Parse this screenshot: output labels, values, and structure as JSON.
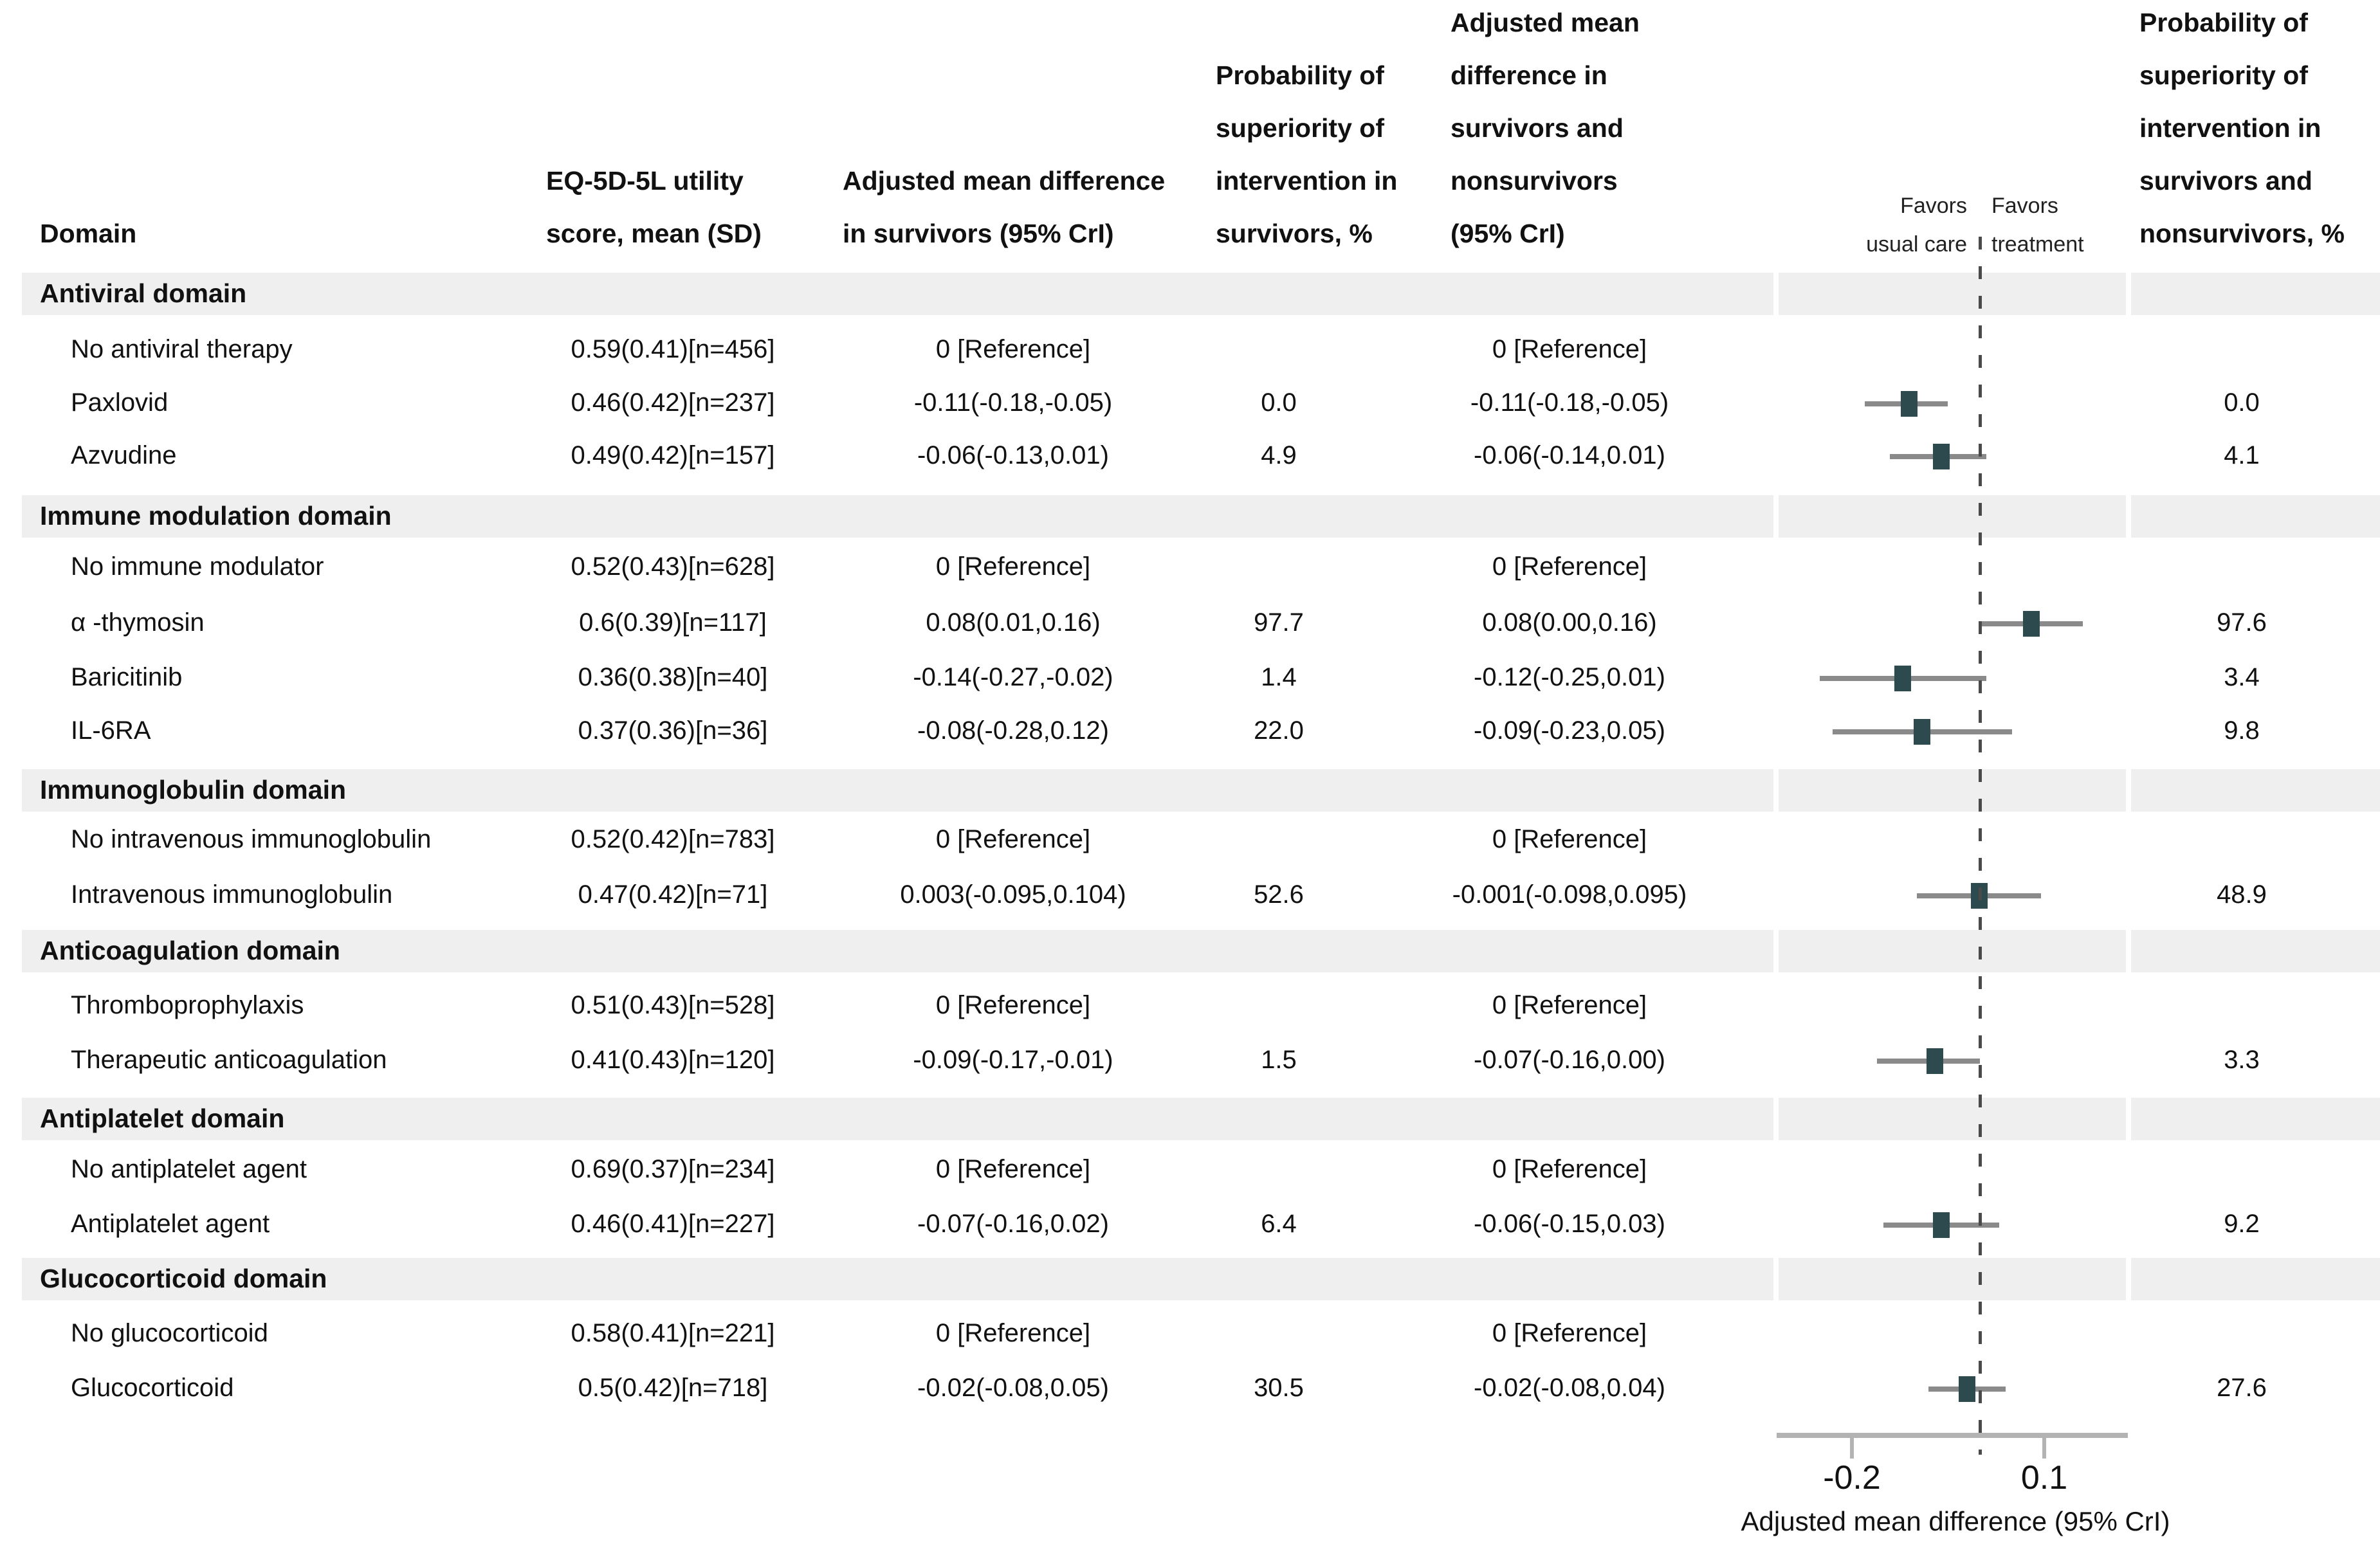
{
  "header": {
    "col_domain": "Domain",
    "col_eq5d": [
      "EQ-5D-5L utility",
      "score, mean (SD)"
    ],
    "col_amd_survivors": [
      "Adjusted mean difference",
      "in survivors (95% CrI)"
    ],
    "col_prob_survivors": [
      "Probability of",
      "superiority of",
      "intervention in",
      "survivors, %"
    ],
    "col_amd_all": [
      "Adjusted mean",
      "difference in",
      "survivors and",
      "nonsurvivors",
      "(95% CrI)"
    ],
    "col_prob_all": [
      "Probability of",
      "superiority of",
      "intervention in",
      "survivors and",
      "nonsurvivors, %"
    ],
    "favors_left": [
      "Favors",
      "usual care"
    ],
    "favors_right": [
      "Favors",
      "treatment"
    ]
  },
  "axis": {
    "tick_labels": [
      "-0.2",
      "0.1"
    ],
    "tick_values": [
      -0.2,
      0.1
    ],
    "label": "Adjusted mean difference (95% CrI)"
  },
  "colors": {
    "marker": "#2d4a4f",
    "ci_line": "#8a8a8a",
    "band": "#efefef",
    "axis": "#b3b3b3",
    "dashed_line": "#4a4a4a",
    "text": "#111111"
  },
  "domains": [
    {
      "name": "Antiviral domain",
      "rows": [
        {
          "label": "No antiviral therapy",
          "eq": "0.59(0.41)[n=456]",
          "amd_surv": "0 [Reference]",
          "prob_surv": "",
          "amd_all": "0 [Reference]",
          "prob_all": "",
          "plot": null
        },
        {
          "label": "Paxlovid",
          "eq": "0.46(0.42)[n=237]",
          "amd_surv": "-0.11(-0.18,-0.05)",
          "prob_surv": "0.0",
          "amd_all": "-0.11(-0.18,-0.05)",
          "prob_all": "0.0",
          "plot": {
            "est": -0.11,
            "lo": -0.18,
            "hi": -0.05
          }
        },
        {
          "label": "Azvudine",
          "eq": "0.49(0.42)[n=157]",
          "amd_surv": "-0.06(-0.13,0.01)",
          "prob_surv": "4.9",
          "amd_all": "-0.06(-0.14,0.01)",
          "prob_all": "4.1",
          "plot": {
            "est": -0.06,
            "lo": -0.14,
            "hi": 0.01
          }
        }
      ]
    },
    {
      "name": "Immune modulation domain",
      "rows": [
        {
          "label": "No immune modulator",
          "eq": "0.52(0.43)[n=628]",
          "amd_surv": "0 [Reference]",
          "prob_surv": "",
          "amd_all": "0 [Reference]",
          "prob_all": "",
          "plot": null
        },
        {
          "label": "α -thymosin",
          "eq": "0.6(0.39)[n=117]",
          "amd_surv": "0.08(0.01,0.16)",
          "prob_surv": "97.7",
          "amd_all": "0.08(0.00,0.16)",
          "prob_all": "97.6",
          "plot": {
            "est": 0.08,
            "lo": 0.0,
            "hi": 0.16
          }
        },
        {
          "label": "Baricitinib",
          "eq": "0.36(0.38)[n=40]",
          "amd_surv": "-0.14(-0.27,-0.02)",
          "prob_surv": "1.4",
          "amd_all": "-0.12(-0.25,0.01)",
          "prob_all": "3.4",
          "plot": {
            "est": -0.12,
            "lo": -0.25,
            "hi": 0.01
          }
        },
        {
          "label": "IL-6RA",
          "eq": "0.37(0.36)[n=36]",
          "amd_surv": "-0.08(-0.28,0.12)",
          "prob_surv": "22.0",
          "amd_all": "-0.09(-0.23,0.05)",
          "prob_all": "9.8",
          "plot": {
            "est": -0.09,
            "lo": -0.23,
            "hi": 0.05
          }
        }
      ]
    },
    {
      "name": "Immunoglobulin domain",
      "rows": [
        {
          "label": "No intravenous immunoglobulin",
          "eq": "0.52(0.42)[n=783]",
          "amd_surv": "0 [Reference]",
          "prob_surv": "",
          "amd_all": "0 [Reference]",
          "prob_all": "",
          "plot": null
        },
        {
          "label": "Intravenous immunoglobulin",
          "eq": "0.47(0.42)[n=71]",
          "amd_surv": "0.003(-0.095,0.104)",
          "prob_surv": "52.6",
          "amd_all": "-0.001(-0.098,0.095)",
          "prob_all": "48.9",
          "plot": {
            "est": -0.001,
            "lo": -0.098,
            "hi": 0.095
          }
        }
      ]
    },
    {
      "name": "Anticoagulation domain",
      "rows": [
        {
          "label": "Thromboprophylaxis",
          "eq": "0.51(0.43)[n=528]",
          "amd_surv": "0 [Reference]",
          "prob_surv": "",
          "amd_all": "0 [Reference]",
          "prob_all": "",
          "plot": null
        },
        {
          "label": "Therapeutic anticoagulation",
          "eq": "0.41(0.43)[n=120]",
          "amd_surv": "-0.09(-0.17,-0.01)",
          "prob_surv": "1.5",
          "amd_all": "-0.07(-0.16,0.00)",
          "prob_all": "3.3",
          "plot": {
            "est": -0.07,
            "lo": -0.16,
            "hi": 0.0
          }
        }
      ]
    },
    {
      "name": "Antiplatelet domain",
      "rows": [
        {
          "label": "No antiplatelet agent",
          "eq": "0.69(0.37)[n=234]",
          "amd_surv": "0 [Reference]",
          "prob_surv": "",
          "amd_all": "0 [Reference]",
          "prob_all": "",
          "plot": null
        },
        {
          "label": "Antiplatelet agent",
          "eq": "0.46(0.41)[n=227]",
          "amd_surv": "-0.07(-0.16,0.02)",
          "prob_surv": "6.4",
          "amd_all": "-0.06(-0.15,0.03)",
          "prob_all": "9.2",
          "plot": {
            "est": -0.06,
            "lo": -0.15,
            "hi": 0.03
          }
        }
      ]
    },
    {
      "name": "Glucocorticoid domain",
      "rows": [
        {
          "label": "No glucocorticoid",
          "eq": "0.58(0.41)[n=221]",
          "amd_surv": "0 [Reference]",
          "prob_surv": "",
          "amd_all": "0 [Reference]",
          "prob_all": "",
          "plot": null
        },
        {
          "label": "Glucocorticoid",
          "eq": "0.5(0.42)[n=718]",
          "amd_surv": "-0.02(-0.08,0.05)",
          "prob_surv": "30.5",
          "amd_all": "-0.02(-0.08,0.04)",
          "prob_all": "27.6",
          "plot": {
            "est": -0.02,
            "lo": -0.08,
            "hi": 0.04
          }
        }
      ]
    }
  ],
  "chart_data": {
    "type": "scatter",
    "subtype": "forest-plot",
    "title": "",
    "xlabel": "Adjusted mean difference (95% CrI)",
    "ylabel": "",
    "x_ticks": [
      -0.2,
      0.1
    ],
    "xlim": [
      -0.32,
      0.23
    ],
    "zero_line": 0,
    "grid": false,
    "legend_position": "none",
    "annotations": [
      "Favors usual care",
      "Favors treatment"
    ],
    "series": [
      {
        "name": "Adjusted mean difference in survivors and nonsurvivors (95% CrI)",
        "points": [
          {
            "label": "Paxlovid",
            "est": -0.11,
            "lo": -0.18,
            "hi": -0.05
          },
          {
            "label": "Azvudine",
            "est": -0.06,
            "lo": -0.14,
            "hi": 0.01
          },
          {
            "label": "α -thymosin",
            "est": 0.08,
            "lo": 0.0,
            "hi": 0.16
          },
          {
            "label": "Baricitinib",
            "est": -0.12,
            "lo": -0.25,
            "hi": 0.01
          },
          {
            "label": "IL-6RA",
            "est": -0.09,
            "lo": -0.23,
            "hi": 0.05
          },
          {
            "label": "Intravenous immunoglobulin",
            "est": -0.001,
            "lo": -0.098,
            "hi": 0.095
          },
          {
            "label": "Therapeutic anticoagulation",
            "est": -0.07,
            "lo": -0.16,
            "hi": 0.0
          },
          {
            "label": "Antiplatelet agent",
            "est": -0.06,
            "lo": -0.15,
            "hi": 0.03
          },
          {
            "label": "Glucocorticoid",
            "est": -0.02,
            "lo": -0.08,
            "hi": 0.04
          }
        ]
      },
      {
        "name": "Adjusted mean difference in survivors (95% CrI)",
        "points": [
          {
            "label": "Paxlovid",
            "est": -0.11,
            "lo": -0.18,
            "hi": -0.05
          },
          {
            "label": "Azvudine",
            "est": -0.06,
            "lo": -0.13,
            "hi": 0.01
          },
          {
            "label": "α -thymosin",
            "est": 0.08,
            "lo": 0.01,
            "hi": 0.16
          },
          {
            "label": "Baricitinib",
            "est": -0.14,
            "lo": -0.27,
            "hi": -0.02
          },
          {
            "label": "IL-6RA",
            "est": -0.08,
            "lo": -0.28,
            "hi": 0.12
          },
          {
            "label": "Intravenous immunoglobulin",
            "est": 0.003,
            "lo": -0.095,
            "hi": 0.104
          },
          {
            "label": "Therapeutic anticoagulation",
            "est": -0.09,
            "lo": -0.17,
            "hi": -0.01
          },
          {
            "label": "Antiplatelet agent",
            "est": -0.07,
            "lo": -0.16,
            "hi": 0.02
          },
          {
            "label": "Glucocorticoid",
            "est": -0.02,
            "lo": -0.08,
            "hi": 0.05
          }
        ]
      }
    ]
  }
}
